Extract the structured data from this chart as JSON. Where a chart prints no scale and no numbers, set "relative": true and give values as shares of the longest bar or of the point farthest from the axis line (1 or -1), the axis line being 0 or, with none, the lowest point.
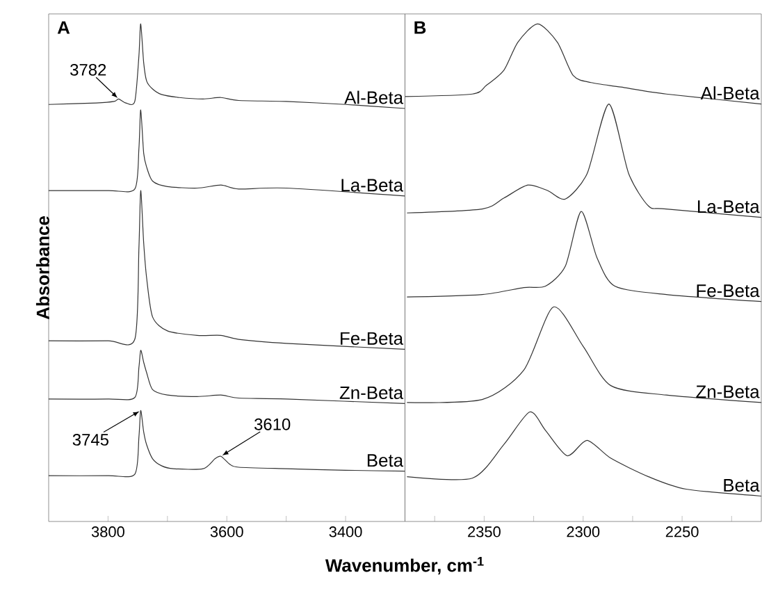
{
  "chart_data": [
    {
      "type": "line",
      "relative": true,
      "xlabel": "Wavenumber, cm$^{-1}$",
      "ylabel": "Absorbance",
      "xlim": [
        3900,
        3300
      ],
      "xticks": [
        3800,
        {
          "value": 3700,
          "label": null
        },
        3600,
        {
          "value": 3500,
          "label": null
        },
        3400
      ],
      "annotations": [
        "A",
        {
          "text": "3782",
          "x": 3782,
          "y": 0.849
        },
        {
          "text": "3745",
          "x": 3745,
          "y": 0.223
        },
        {
          "text": "3610",
          "x": 3610,
          "y": 0.131
        }
      ],
      "series": [
        {
          "name": "Al-Beta",
          "color": "#333333",
          "x": [
            3900,
            3820,
            3790,
            3782,
            3770,
            3755,
            3748,
            3745,
            3740,
            3735,
            3725,
            3710,
            3680,
            3640,
            3610,
            3580,
            3500,
            3400,
            3300
          ],
          "values": [
            0.838,
            0.841,
            0.844,
            0.849,
            0.841,
            0.844,
            0.936,
            1.0,
            0.922,
            0.885,
            0.869,
            0.858,
            0.852,
            0.849,
            0.852,
            0.846,
            0.844,
            0.838,
            0.83
          ]
        },
        {
          "name": "La-Beta",
          "color": "#333333",
          "x": [
            3900,
            3800,
            3755,
            3748,
            3745,
            3740,
            3735,
            3725,
            3700,
            3650,
            3610,
            3580,
            3500,
            3300
          ],
          "values": [
            0.665,
            0.665,
            0.668,
            0.75,
            0.827,
            0.74,
            0.712,
            0.684,
            0.673,
            0.67,
            0.676,
            0.668,
            0.67,
            0.654
          ]
        },
        {
          "name": "Fe-Beta",
          "color": "#333333",
          "x": [
            3900,
            3800,
            3755,
            3748,
            3745,
            3740,
            3735,
            3725,
            3700,
            3650,
            3610,
            3580,
            3500,
            3300
          ],
          "values": [
            0.363,
            0.363,
            0.366,
            0.55,
            0.665,
            0.56,
            0.489,
            0.411,
            0.383,
            0.374,
            0.374,
            0.366,
            0.358,
            0.346
          ]
        },
        {
          "name": "Zn-Beta",
          "color": "#333333",
          "x": [
            3900,
            3800,
            3755,
            3748,
            3745,
            3740,
            3735,
            3725,
            3700,
            3650,
            3610,
            3580,
            3500,
            3300
          ],
          "values": [
            0.246,
            0.246,
            0.249,
            0.31,
            0.344,
            0.32,
            0.299,
            0.265,
            0.254,
            0.251,
            0.254,
            0.248,
            0.246,
            0.237
          ]
        },
        {
          "name": "Beta",
          "color": "#333333",
          "x": [
            3900,
            3800,
            3755,
            3748,
            3745,
            3740,
            3735,
            3725,
            3710,
            3690,
            3640,
            3620,
            3610,
            3595,
            3580,
            3500,
            3400,
            3300
          ],
          "values": [
            0.092,
            0.092,
            0.095,
            0.17,
            0.223,
            0.18,
            0.154,
            0.126,
            0.112,
            0.106,
            0.106,
            0.126,
            0.131,
            0.115,
            0.109,
            0.106,
            0.103,
            0.101
          ]
        }
      ]
    },
    {
      "type": "line",
      "relative": true,
      "xlim": [
        2390,
        2210
      ],
      "xticks": [
        {
          "value": 2375,
          "label": null
        },
        2350,
        {
          "value": 2325,
          "label": null
        },
        2300,
        {
          "value": 2275,
          "label": null
        },
        2250,
        {
          "value": 2225,
          "label": null
        }
      ],
      "annotations": [
        "B"
      ],
      "series": [
        {
          "name": "Al-Beta",
          "color": "#333333",
          "x": [
            2390,
            2356,
            2349,
            2340,
            2333,
            2323,
            2313,
            2305,
            2296,
            2281,
            2258,
            2210
          ],
          "values": [
            0.854,
            0.859,
            0.876,
            0.907,
            0.963,
            1.0,
            0.963,
            0.896,
            0.882,
            0.873,
            0.859,
            0.839
          ]
        },
        {
          "name": "La-Beta",
          "color": "#333333",
          "x": [
            2389,
            2351,
            2340,
            2328,
            2318,
            2309,
            2298,
            2287,
            2277,
            2267,
            2258,
            2210
          ],
          "values": [
            0.62,
            0.628,
            0.65,
            0.676,
            0.665,
            0.648,
            0.699,
            0.839,
            0.699,
            0.634,
            0.628,
            0.611
          ]
        },
        {
          "name": "Fe-Beta",
          "color": "#333333",
          "x": [
            2389,
            2351,
            2330,
            2319,
            2309,
            2301,
            2293,
            2284,
            2258,
            2210
          ],
          "values": [
            0.451,
            0.456,
            0.47,
            0.473,
            0.513,
            0.623,
            0.53,
            0.473,
            0.456,
            0.442
          ]
        },
        {
          "name": "Zn-Beta",
          "color": "#333333",
          "x": [
            2389,
            2351,
            2330,
            2315,
            2300,
            2286,
            2258,
            2210
          ],
          "values": [
            0.239,
            0.245,
            0.304,
            0.431,
            0.352,
            0.273,
            0.254,
            0.239
          ]
        },
        {
          "name": "Beta",
          "color": "#333333",
          "x": [
            2389,
            2356,
            2340,
            2327,
            2319,
            2308,
            2298,
            2286,
            2267,
            2248,
            2210
          ],
          "values": [
            0.09,
            0.087,
            0.155,
            0.22,
            0.183,
            0.132,
            0.163,
            0.127,
            0.09,
            0.065,
            0.051
          ]
        }
      ]
    }
  ]
}
